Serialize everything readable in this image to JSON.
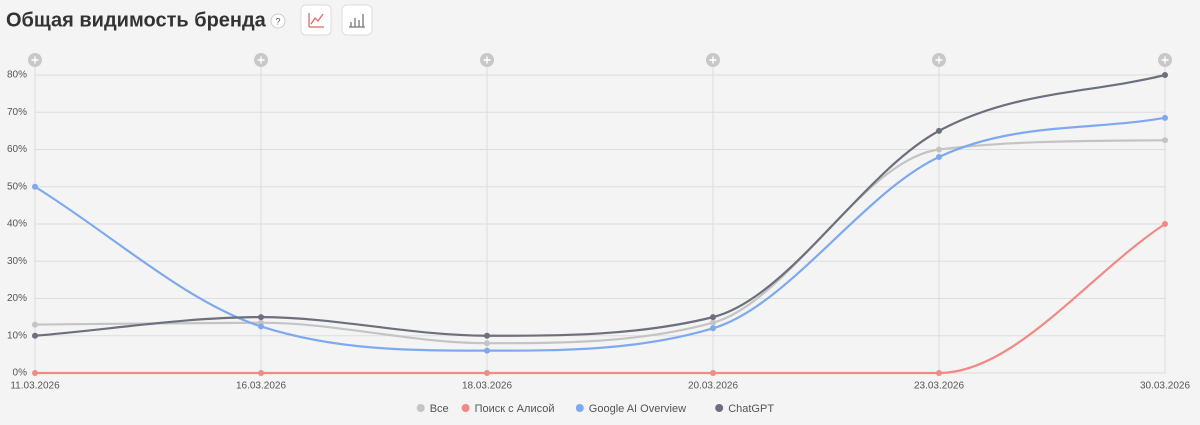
{
  "header": {
    "title": "Общая видимость бренда",
    "help": "?"
  },
  "chart_data": {
    "type": "line",
    "categories": [
      "11.03.2026",
      "16.03.2026",
      "18.03.2026",
      "20.03.2026",
      "23.03.2026",
      "30.03.2026"
    ],
    "series": [
      {
        "name": "Все",
        "color": "#c4c4c4",
        "values": [
          13,
          13.5,
          8,
          13.5,
          60,
          62.5
        ]
      },
      {
        "name": "Поиск с Алисой",
        "color": "#f08a84",
        "values": [
          0,
          0,
          0,
          0,
          0,
          40
        ]
      },
      {
        "name": "Google AI Overview",
        "color": "#7ea9ee",
        "values": [
          50,
          12.5,
          6,
          12,
          58,
          68.5
        ]
      },
      {
        "name": "ChatGPT",
        "color": "#6c707c",
        "values": [
          10,
          15,
          10,
          15,
          65,
          80
        ]
      }
    ],
    "ylim": [
      0,
      80
    ],
    "yticks": [
      {
        "value": 0,
        "label": "0%"
      },
      {
        "value": 10,
        "label": "10%"
      },
      {
        "value": 20,
        "label": "20%"
      },
      {
        "value": 30,
        "label": "30%"
      },
      {
        "value": 40,
        "label": "40%"
      },
      {
        "value": 50,
        "label": "50%"
      },
      {
        "value": 60,
        "label": "60%"
      },
      {
        "value": 70,
        "label": "70%"
      },
      {
        "value": 80,
        "label": "80%"
      }
    ],
    "grid": true
  }
}
